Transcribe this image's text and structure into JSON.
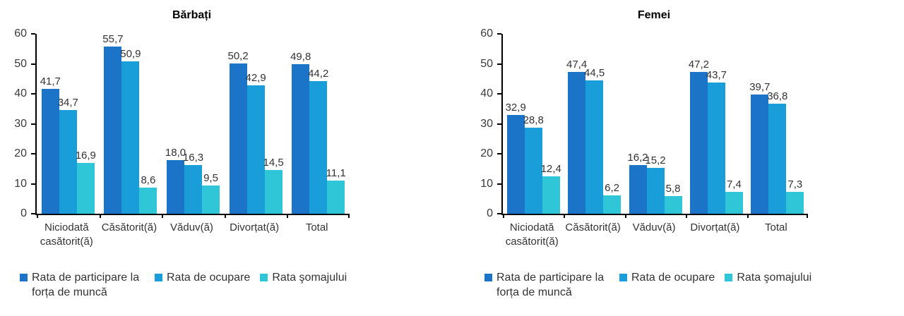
{
  "chart_data": [
    {
      "type": "bar",
      "title": "Bărbați",
      "categories": [
        "Niciodată casătorit(ă)",
        "Căsătorit(ă)",
        "Văduv(ă)",
        "Divorțat(ă)",
        "Total"
      ],
      "series": [
        {
          "name": "Rata de participare la forța de muncă",
          "color": "#1B74C8",
          "values": [
            41.7,
            55.7,
            18.0,
            50.2,
            49.8
          ]
        },
        {
          "name": "Rata de ocupare",
          "color": "#199ED9",
          "values": [
            34.7,
            50.9,
            16.3,
            42.9,
            44.2
          ]
        },
        {
          "name": "Rata şomajului",
          "color": "#2FC6D8",
          "values": [
            16.9,
            8.6,
            9.5,
            14.5,
            11.1
          ]
        }
      ],
      "ylim": [
        0,
        60
      ],
      "yticks": [
        0,
        10,
        20,
        30,
        40,
        50,
        60
      ],
      "grid": false,
      "legend_position": "bottom",
      "decimal_separator": ",",
      "axis_color": "#000000",
      "text_color": "#3a3a3a"
    },
    {
      "type": "bar",
      "title": "Femei",
      "categories": [
        "Niciodată casătorit(ă)",
        "Căsătorit(ă)",
        "Văduv(ă)",
        "Divorțat(ă)",
        "Total"
      ],
      "series": [
        {
          "name": "Rata de participare la forța de muncă",
          "color": "#1B74C8",
          "values": [
            32.9,
            47.4,
            16.2,
            47.2,
            39.7
          ]
        },
        {
          "name": "Rata de ocupare",
          "color": "#199ED9",
          "values": [
            28.8,
            44.5,
            15.2,
            43.7,
            36.8
          ]
        },
        {
          "name": "Rata şomajului",
          "color": "#2FC6D8",
          "values": [
            12.4,
            6.2,
            5.8,
            7.4,
            7.3
          ]
        }
      ],
      "ylim": [
        0,
        60
      ],
      "yticks": [
        0,
        10,
        20,
        30,
        40,
        50,
        60
      ],
      "grid": false,
      "legend_position": "bottom",
      "decimal_separator": ",",
      "axis_color": "#000000",
      "text_color": "#3a3a3a"
    }
  ]
}
